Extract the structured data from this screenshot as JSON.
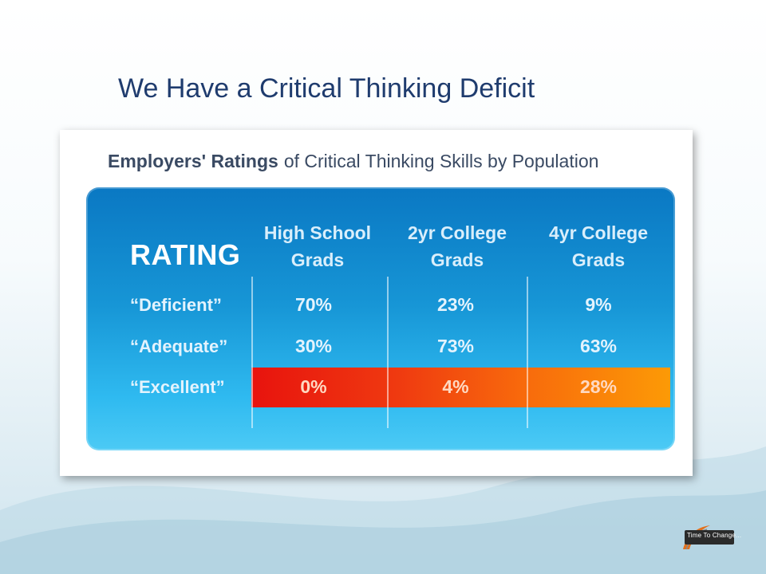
{
  "slide": {
    "title": "We Have a Critical Thinking Deficit"
  },
  "logo": {
    "text": "Time To Change..."
  },
  "chart_data": {
    "type": "table",
    "title_bold": "Employers' Ratings",
    "title_rest": "of Critical Thinking Skills by Population",
    "corner_label": "RATING",
    "columns": [
      {
        "line1": "High School",
        "line2": "Grads"
      },
      {
        "line1": "2yr College",
        "line2": "Grads"
      },
      {
        "line1": "4yr College",
        "line2": "Grads"
      }
    ],
    "rows": [
      {
        "label": "“Deficient”",
        "values": [
          "70%",
          "23%",
          "9%"
        ]
      },
      {
        "label": "“Adequate”",
        "values": [
          "30%",
          "73%",
          "63%"
        ]
      },
      {
        "label": "“Excellent”",
        "values": [
          "0%",
          "4%",
          "28%"
        ],
        "highlighted": true
      }
    ],
    "colors": {
      "panel_top": "#0a78c3",
      "panel_bottom": "#4ccaf5",
      "highlight_start": "#e8130e",
      "highlight_end": "#fc9a06"
    }
  }
}
